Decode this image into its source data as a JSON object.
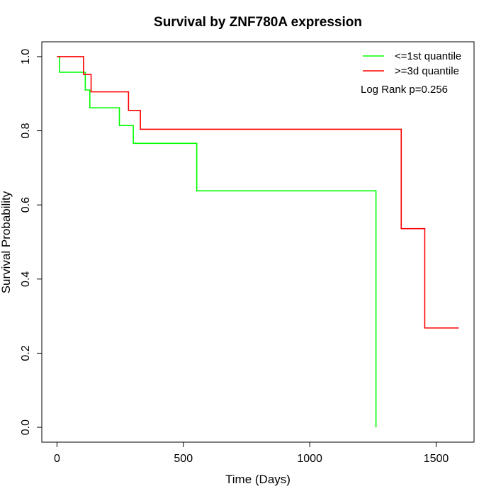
{
  "chart_data": {
    "type": "line",
    "subtype": "kaplan-meier-step",
    "title": "Survival by ZNF780A expression",
    "xlabel": "Time (Days)",
    "ylabel": "Survival Probability",
    "xlim": [
      -60,
      1650
    ],
    "ylim": [
      -0.04,
      1.04
    ],
    "x_ticks": [
      0,
      500,
      1000,
      1500
    ],
    "x_tick_labels": [
      "0",
      "500",
      "1000",
      "1500"
    ],
    "y_ticks": [
      0.0,
      0.2,
      0.4,
      0.6,
      0.8,
      1.0
    ],
    "y_tick_labels": [
      "0.0",
      "0.2",
      "0.4",
      "0.6",
      "0.8",
      "1.0"
    ],
    "grid": false,
    "legend_position": "top-right",
    "annotation": "Log Rank p=0.256",
    "series": [
      {
        "name": "<=1st quantile",
        "color": "#00ff00",
        "steps": [
          {
            "x": 0,
            "y": 1.0
          },
          {
            "x": 10,
            "y": 0.958
          },
          {
            "x": 112,
            "y": 0.91
          },
          {
            "x": 130,
            "y": 0.862
          },
          {
            "x": 247,
            "y": 0.814
          },
          {
            "x": 302,
            "y": 0.766
          },
          {
            "x": 553,
            "y": 0.638
          },
          {
            "x": 1262,
            "y": 0.0
          }
        ],
        "end_x": 1262
      },
      {
        "name": ">=3d quantile",
        "color": "#ff0000",
        "steps": [
          {
            "x": 0,
            "y": 1.0
          },
          {
            "x": 105,
            "y": 0.952
          },
          {
            "x": 135,
            "y": 0.905
          },
          {
            "x": 283,
            "y": 0.855
          },
          {
            "x": 330,
            "y": 0.804
          },
          {
            "x": 1362,
            "y": 0.536
          },
          {
            "x": 1455,
            "y": 0.268
          }
        ],
        "end_x": 1590
      }
    ]
  }
}
